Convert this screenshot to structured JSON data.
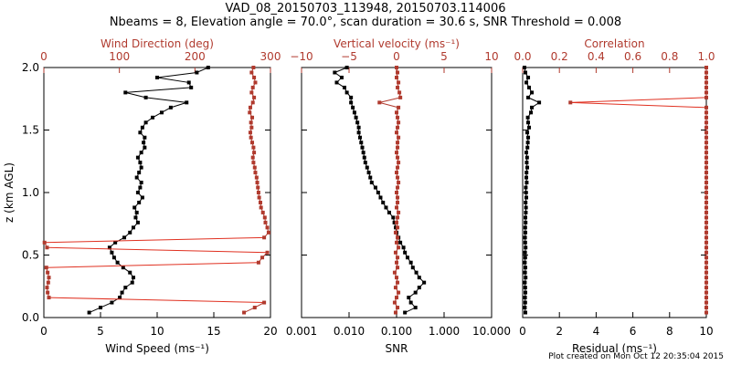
{
  "header": {
    "title_line1": "VAD_08_20150703_113948, 20150703.114006",
    "title_line2": "Nbeams = 8, Elevation angle = 70.0°, scan duration = 30.6 s, SNR Threshold = 0.008"
  },
  "footer": {
    "credit": "Plot created on Mon Oct 12 20:35:04 2015"
  },
  "colors": {
    "primary": "#000000",
    "secondary": "#b03a2e",
    "connector": "#e03020"
  },
  "chart_data": [
    {
      "type": "line",
      "ylabel": "z (km AGL)",
      "ylim": [
        0,
        2
      ],
      "yticks": [
        "0.0",
        "0.5",
        "1.0",
        "1.5",
        "2.0"
      ],
      "bottom_axis": {
        "label": "Wind Speed (ms⁻¹)",
        "xlim": [
          0,
          20
        ],
        "ticks": [
          "0",
          "5",
          "10",
          "15",
          "20"
        ]
      },
      "top_axis": {
        "label": "Wind Direction (deg)",
        "xlim": [
          0,
          360
        ],
        "ticks": [
          "0",
          "100",
          "200",
          "300"
        ]
      },
      "series": [
        {
          "axis": "bottom",
          "z": [
            0.04,
            0.08,
            0.12,
            0.16,
            0.2,
            0.24,
            0.28,
            0.32,
            0.36,
            0.4,
            0.44,
            0.48,
            0.52,
            0.56,
            0.6,
            0.64,
            0.68,
            0.72,
            0.76,
            0.8,
            0.84,
            0.88,
            0.92,
            0.96,
            1.0,
            1.04,
            1.08,
            1.12,
            1.16,
            1.2,
            1.24,
            1.28,
            1.32,
            1.36,
            1.4,
            1.44,
            1.48,
            1.52,
            1.56,
            1.6,
            1.64,
            1.68,
            1.72,
            1.76,
            1.8,
            1.84,
            1.88,
            1.92,
            1.96,
            2.0
          ],
          "values": [
            4.0,
            5.0,
            6.0,
            6.7,
            6.9,
            7.2,
            7.8,
            7.9,
            7.6,
            7.0,
            6.5,
            6.2,
            6.0,
            5.8,
            6.3,
            7.1,
            7.6,
            7.9,
            8.3,
            8.1,
            8.2,
            8.0,
            8.4,
            8.7,
            8.3,
            8.5,
            8.6,
            8.2,
            8.4,
            8.6,
            8.5,
            8.3,
            8.6,
            8.9,
            8.8,
            8.9,
            8.5,
            8.7,
            9.0,
            9.6,
            10.4,
            11.2,
            12.6,
            9.0,
            7.2,
            13.0,
            12.8,
            10.0,
            13.5,
            14.5
          ]
        },
        {
          "axis": "top",
          "z": [
            0.04,
            0.08,
            0.12,
            0.16,
            0.2,
            0.24,
            0.28,
            0.32,
            0.36,
            0.4,
            0.44,
            0.48,
            0.52,
            0.56,
            0.6,
            0.64,
            0.68,
            0.72,
            0.76,
            0.8,
            0.84,
            0.88,
            0.92,
            0.96,
            1.0,
            1.04,
            1.08,
            1.12,
            1.16,
            1.2,
            1.24,
            1.28,
            1.32,
            1.36,
            1.4,
            1.44,
            1.48,
            1.52,
            1.56,
            1.6,
            1.64,
            1.68,
            1.72,
            1.76,
            1.8,
            1.84,
            1.88,
            1.92,
            1.96,
            2.0
          ],
          "values": [
            318,
            335,
            350,
            8,
            6,
            5,
            7,
            8,
            6,
            4,
            341,
            347,
            355,
            5,
            1,
            350,
            357,
            355,
            352,
            351,
            348,
            345,
            344,
            342,
            341,
            340,
            339,
            338,
            336,
            335,
            333,
            332,
            334,
            333,
            331,
            329,
            328,
            330,
            329,
            331,
            327,
            328,
            332,
            334,
            330,
            332,
            336,
            334,
            330,
            333
          ]
        }
      ]
    },
    {
      "type": "line",
      "ylim": [
        0,
        2
      ],
      "bottom_axis": {
        "label": "SNR",
        "scale": "log",
        "xlim": [
          0.001,
          10
        ],
        "ticks": [
          "0.001",
          "0.010",
          "0.100",
          "1.000",
          "10.000"
        ]
      },
      "top_axis": {
        "label": "Vertical velocity (ms⁻¹)",
        "xlim": [
          -10,
          10
        ],
        "ticks": [
          "−10",
          "−5",
          "0",
          "5",
          "10"
        ]
      },
      "series": [
        {
          "axis": "bottom",
          "z": [
            0.04,
            0.08,
            0.12,
            0.16,
            0.2,
            0.24,
            0.28,
            0.32,
            0.36,
            0.4,
            0.44,
            0.48,
            0.52,
            0.56,
            0.6,
            0.64,
            0.68,
            0.72,
            0.76,
            0.8,
            0.84,
            0.88,
            0.92,
            0.96,
            1.0,
            1.04,
            1.08,
            1.12,
            1.16,
            1.2,
            1.24,
            1.28,
            1.32,
            1.36,
            1.4,
            1.44,
            1.48,
            1.52,
            1.56,
            1.6,
            1.64,
            1.68,
            1.72,
            1.76,
            1.8,
            1.84,
            1.88,
            1.92,
            1.96,
            2.0
          ],
          "values": [
            0.15,
            0.25,
            0.2,
            0.18,
            0.25,
            0.3,
            0.38,
            0.3,
            0.26,
            0.22,
            0.2,
            0.17,
            0.15,
            0.14,
            0.12,
            0.11,
            0.1,
            0.096,
            0.09,
            0.085,
            0.07,
            0.06,
            0.052,
            0.046,
            0.041,
            0.036,
            0.03,
            0.028,
            0.026,
            0.024,
            0.022,
            0.021,
            0.02,
            0.019,
            0.018,
            0.017,
            0.016,
            0.016,
            0.015,
            0.014,
            0.013,
            0.012,
            0.011,
            0.011,
            0.009,
            0.008,
            0.0055,
            0.007,
            0.005,
            0.009
          ]
        },
        {
          "axis": "top",
          "z": [
            0.04,
            0.08,
            0.12,
            0.16,
            0.2,
            0.24,
            0.28,
            0.32,
            0.36,
            0.4,
            0.44,
            0.48,
            0.52,
            0.56,
            0.6,
            0.64,
            0.68,
            0.72,
            0.76,
            0.8,
            0.84,
            0.88,
            0.92,
            0.96,
            1.0,
            1.04,
            1.08,
            1.12,
            1.16,
            1.2,
            1.24,
            1.28,
            1.32,
            1.36,
            1.4,
            1.44,
            1.48,
            1.52,
            1.56,
            1.6,
            1.64,
            1.68,
            1.72,
            1.76,
            1.8,
            1.84,
            1.88,
            1.92,
            1.96,
            2.0
          ],
          "values": [
            -0.1,
            0.1,
            -0.2,
            0.0,
            0.2,
            -0.1,
            0.1,
            0.0,
            -0.2,
            0.1,
            0.0,
            0.1,
            -0.1,
            0.2,
            0.0,
            0.1,
            -0.1,
            0.1,
            0.0,
            0.1,
            0.2,
            0.0,
            0.1,
            0.1,
            0.0,
            0.1,
            0.2,
            0.1,
            0.0,
            0.1,
            0.2,
            0.1,
            0.0,
            0.1,
            0.1,
            0.2,
            0.0,
            0.1,
            0.2,
            0.1,
            0.0,
            0.2,
            -1.8,
            0.4,
            0.3,
            0.1,
            0.2,
            0.0,
            0.1,
            0.0
          ]
        }
      ]
    },
    {
      "type": "line",
      "ylim": [
        0,
        2
      ],
      "bottom_axis": {
        "label": "Residual (ms⁻¹)",
        "xlim": [
          0,
          10
        ],
        "ticks": [
          "0",
          "2",
          "4",
          "6",
          "8",
          "10"
        ]
      },
      "top_axis": {
        "label": "Correlation",
        "xlim": [
          0,
          1
        ],
        "ticks": [
          "0.0",
          "0.2",
          "0.4",
          "0.6",
          "0.8",
          "1.0"
        ]
      },
      "series": [
        {
          "axis": "bottom",
          "z": [
            0.04,
            0.08,
            0.12,
            0.16,
            0.2,
            0.24,
            0.28,
            0.32,
            0.36,
            0.4,
            0.44,
            0.48,
            0.52,
            0.56,
            0.6,
            0.64,
            0.68,
            0.72,
            0.76,
            0.8,
            0.84,
            0.88,
            0.92,
            0.96,
            1.0,
            1.04,
            1.08,
            1.12,
            1.16,
            1.2,
            1.24,
            1.28,
            1.32,
            1.36,
            1.4,
            1.44,
            1.48,
            1.52,
            1.56,
            1.6,
            1.64,
            1.68,
            1.72,
            1.76,
            1.8,
            1.84,
            1.88,
            1.92,
            1.96,
            2.0
          ],
          "values": [
            0.15,
            0.12,
            0.14,
            0.13,
            0.15,
            0.14,
            0.12,
            0.16,
            0.13,
            0.15,
            0.12,
            0.14,
            0.13,
            0.16,
            0.14,
            0.13,
            0.15,
            0.14,
            0.16,
            0.15,
            0.17,
            0.18,
            0.16,
            0.2,
            0.18,
            0.17,
            0.22,
            0.2,
            0.21,
            0.25,
            0.22,
            0.24,
            0.2,
            0.26,
            0.28,
            0.3,
            0.25,
            0.35,
            0.3,
            0.28,
            0.45,
            0.5,
            0.9,
            0.3,
            0.5,
            0.35,
            0.2,
            0.3,
            0.15,
            0.1
          ]
        },
        {
          "axis": "top",
          "z": [
            0.04,
            0.08,
            0.12,
            0.16,
            0.2,
            0.24,
            0.28,
            0.32,
            0.36,
            0.4,
            0.44,
            0.48,
            0.52,
            0.56,
            0.6,
            0.64,
            0.68,
            0.72,
            0.76,
            0.8,
            0.84,
            0.88,
            0.92,
            0.96,
            1.0,
            1.04,
            1.08,
            1.12,
            1.16,
            1.2,
            1.24,
            1.28,
            1.32,
            1.36,
            1.4,
            1.44,
            1.48,
            1.52,
            1.56,
            1.6,
            1.64,
            1.68,
            1.72,
            1.76,
            1.8,
            1.84,
            1.88,
            1.92,
            1.96,
            2.0
          ],
          "values": [
            1,
            1,
            1,
            1,
            1,
            1,
            1,
            1,
            1,
            1,
            1,
            1,
            1,
            1,
            1,
            1,
            1,
            1,
            1,
            1,
            1,
            1,
            1,
            1,
            1,
            1,
            1,
            1,
            1,
            1,
            1,
            1,
            1,
            1,
            1,
            1,
            1,
            1,
            1,
            1,
            1,
            1,
            0.26,
            1,
            1,
            1,
            1,
            1,
            1,
            1
          ]
        }
      ]
    }
  ]
}
